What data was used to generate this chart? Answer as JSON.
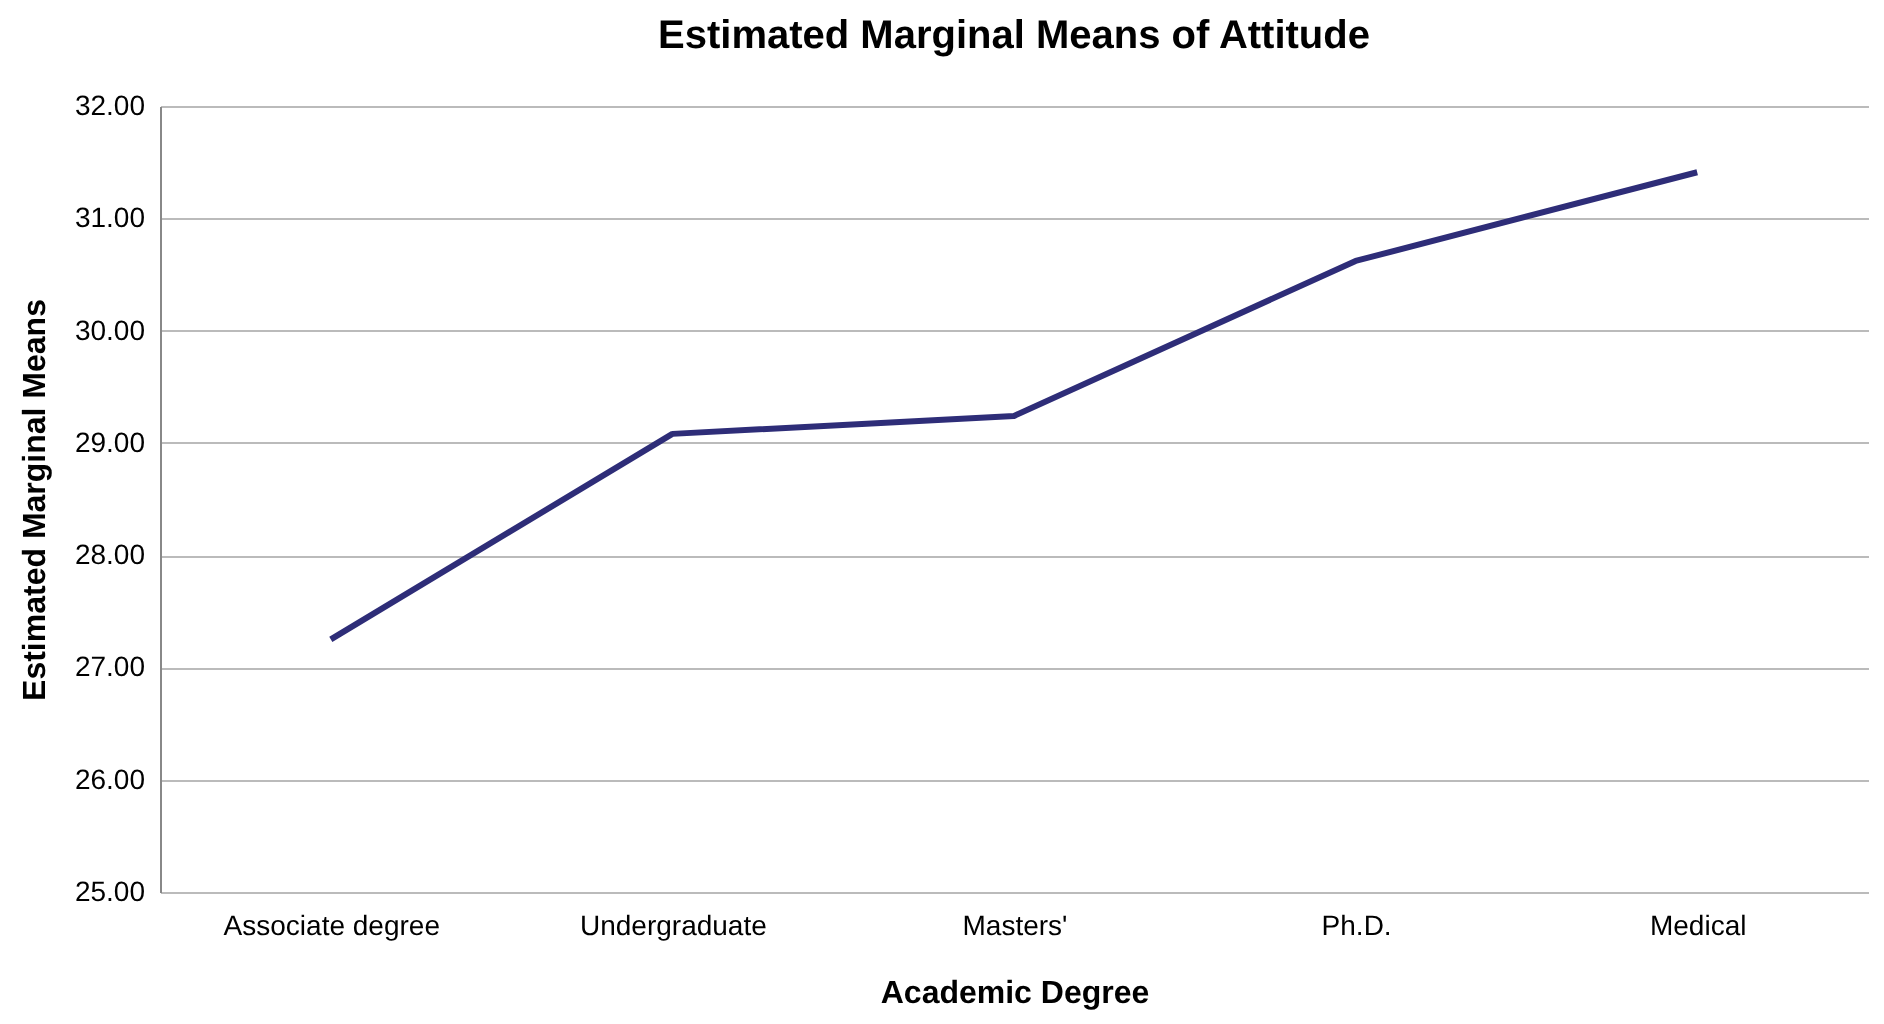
{
  "chart_data": {
    "type": "line",
    "title": "Estimated Marginal Means of Attitude",
    "xlabel": "Academic Degree",
    "ylabel": "Estimated Marginal Means",
    "categories": [
      "Associate degree",
      "Undergraduate",
      "Masters'",
      "Ph.D.",
      "Medical"
    ],
    "series": [
      {
        "color": "#2e2d78",
        "values": [
          27.25,
          29.08,
          29.24,
          30.62,
          31.41
        ]
      }
    ],
    "ylim": [
      25,
      32
    ],
    "yticks": [
      {
        "value": 25,
        "label": "25.00"
      },
      {
        "value": 26,
        "label": "26.00"
      },
      {
        "value": 27,
        "label": "27.00"
      },
      {
        "value": 28,
        "label": "28.00"
      },
      {
        "value": 29,
        "label": "29.00"
      },
      {
        "value": 30,
        "label": "30.00"
      },
      {
        "value": 31,
        "label": "31.00"
      },
      {
        "value": 32,
        "label": "32.00"
      }
    ],
    "grid": "y",
    "marker": "none",
    "line_style": "solid"
  }
}
